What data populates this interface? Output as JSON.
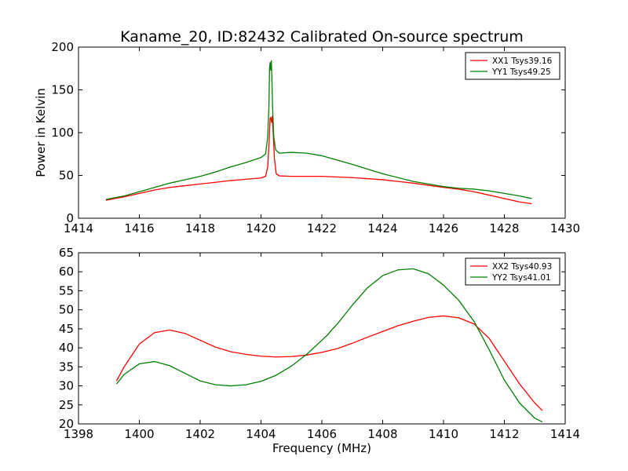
{
  "figure": {
    "title": "Kaname_20, ID:82432 Calibrated On-source spectrum",
    "xlabel": "Frequency (MHz)",
    "ylabel": "Power in Kelvin",
    "colors": {
      "red": "#ff0000",
      "green": "#007f00"
    }
  },
  "chart_data": [
    {
      "type": "line",
      "title": "Kaname_20, ID:82432 Calibrated On-source spectrum",
      "xlabel": "",
      "ylabel": "Power in Kelvin",
      "xlim": [
        1414,
        1430
      ],
      "ylim": [
        0,
        200
      ],
      "xticks": [
        "1414",
        "1416",
        "1418",
        "1420",
        "1422",
        "1424",
        "1426",
        "1428",
        "1430"
      ],
      "yticks": [
        "0",
        "50",
        "100",
        "150",
        "200"
      ],
      "grid": false,
      "legend_position": "top-right",
      "series": [
        {
          "name": "XX1 Tsys39.16",
          "color": "#ff0000",
          "x": [
            1414.9,
            1415.5,
            1416.0,
            1416.5,
            1417.0,
            1417.5,
            1418.0,
            1418.5,
            1419.0,
            1419.5,
            1420.0,
            1420.15,
            1420.22,
            1420.26,
            1420.3,
            1420.32,
            1420.35,
            1420.37,
            1420.4,
            1420.44,
            1420.5,
            1420.6,
            1421.0,
            1422.0,
            1423.0,
            1424.0,
            1425.0,
            1426.0,
            1426.5,
            1427.0,
            1427.5,
            1428.0,
            1428.5,
            1428.9
          ],
          "y": [
            21,
            25,
            29,
            33,
            36,
            38,
            40,
            42,
            44,
            45.5,
            47,
            49,
            60,
            85,
            117,
            118,
            112,
            119,
            100,
            70,
            52,
            49.5,
            49,
            49,
            47.5,
            45,
            41,
            36,
            34,
            31,
            27,
            23,
            19,
            17
          ]
        },
        {
          "name": "YY1 Tsys49.25",
          "color": "#007f00",
          "x": [
            1414.9,
            1415.5,
            1416.0,
            1416.5,
            1417.0,
            1417.5,
            1418.0,
            1418.5,
            1419.0,
            1419.5,
            1420.0,
            1420.15,
            1420.22,
            1420.26,
            1420.28,
            1420.3,
            1420.32,
            1420.34,
            1420.36,
            1420.38,
            1420.42,
            1420.48,
            1420.6,
            1421.0,
            1421.5,
            1422.0,
            1423.0,
            1424.0,
            1425.0,
            1426.0,
            1426.5,
            1427.0,
            1427.5,
            1428.0,
            1428.5,
            1428.9
          ],
          "y": [
            22,
            26,
            31,
            36,
            41,
            45,
            49,
            54,
            60,
            65,
            71,
            75,
            95,
            130,
            175,
            182,
            173,
            184,
            160,
            130,
            95,
            80,
            76,
            77,
            76,
            73,
            63,
            52,
            43,
            37,
            35,
            34,
            32,
            29,
            26,
            23
          ]
        }
      ]
    },
    {
      "type": "line",
      "title": "",
      "xlabel": "Frequency (MHz)",
      "ylabel": "",
      "xlim": [
        1398,
        1414
      ],
      "ylim": [
        20,
        65
      ],
      "xticks": [
        "1398",
        "1400",
        "1402",
        "1404",
        "1406",
        "1408",
        "1410",
        "1412",
        "1414"
      ],
      "yticks": [
        "20",
        "25",
        "30",
        "35",
        "40",
        "45",
        "50",
        "55",
        "60",
        "65"
      ],
      "grid": false,
      "legend_position": "top-right",
      "series": [
        {
          "name": "XX2 Tsys40.93",
          "color": "#ff0000",
          "x": [
            1399.25,
            1399.5,
            1400.0,
            1400.5,
            1401.0,
            1401.5,
            1402.0,
            1402.5,
            1403.0,
            1403.5,
            1404.0,
            1404.5,
            1405.0,
            1405.5,
            1406.0,
            1406.5,
            1407.0,
            1407.5,
            1408.0,
            1408.5,
            1409.0,
            1409.5,
            1410.0,
            1410.5,
            1411.0,
            1411.5,
            1412.0,
            1412.5,
            1413.0,
            1413.25
          ],
          "y": [
            31.3,
            35,
            41,
            44,
            44.7,
            43.8,
            42,
            40.2,
            39,
            38.3,
            37.8,
            37.6,
            37.7,
            38.1,
            38.8,
            39.8,
            41.2,
            42.8,
            44.3,
            45.8,
            47,
            48,
            48.4,
            47.9,
            46.3,
            42.5,
            36.5,
            30.5,
            25.5,
            23.5
          ]
        },
        {
          "name": "YY2 Tsys41.01",
          "color": "#007f00",
          "x": [
            1399.25,
            1399.5,
            1400.0,
            1400.5,
            1401.0,
            1401.5,
            1402.0,
            1402.5,
            1403.0,
            1403.5,
            1404.0,
            1404.5,
            1405.0,
            1405.5,
            1406.0,
            1406.2,
            1406.3,
            1406.5,
            1407.0,
            1407.5,
            1408.0,
            1408.5,
            1409.0,
            1409.5,
            1410.0,
            1410.5,
            1411.0,
            1411.5,
            1412.0,
            1412.5,
            1413.0,
            1413.25
          ],
          "y": [
            30.5,
            33,
            35.8,
            36.4,
            35.3,
            33.3,
            31.3,
            30.3,
            30.0,
            30.3,
            31.2,
            32.8,
            35.2,
            38.3,
            42.0,
            43.5,
            44.5,
            46.2,
            51.2,
            55.8,
            59.0,
            60.5,
            60.8,
            59.5,
            56.5,
            52.5,
            47.0,
            39.5,
            31.5,
            25.5,
            21.5,
            20.5
          ]
        }
      ]
    }
  ]
}
